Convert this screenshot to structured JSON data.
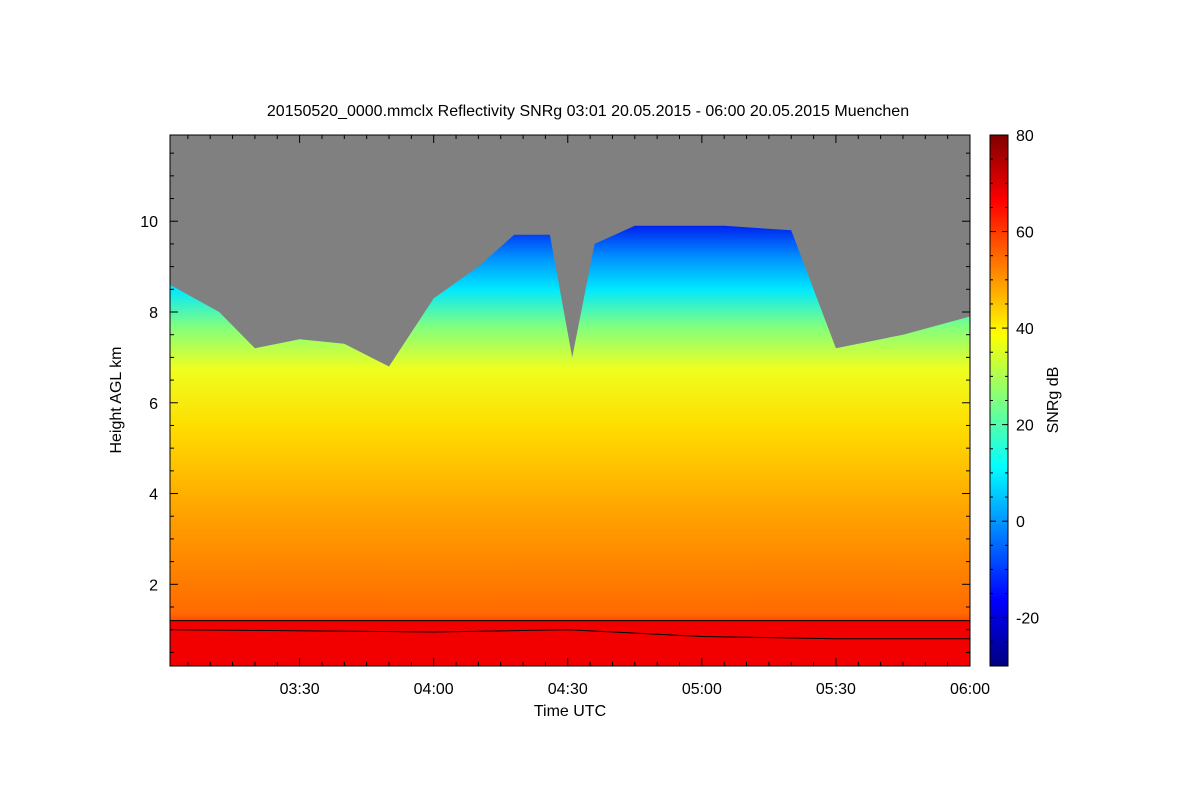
{
  "chart_data": {
    "type": "heatmap",
    "title": "20150520_0000.mmclx Reflectivity SNRg   03:01 20.05.2015 - 06:00 20.05.2015 Muenchen",
    "xlabel": "Time UTC",
    "ylabel": "Height AGL km",
    "colorbar_label": "SNRg dB",
    "x_ticks": [
      "03:30",
      "04:00",
      "04:30",
      "05:00",
      "05:30",
      "06:00"
    ],
    "y_ticks": [
      "2",
      "4",
      "6",
      "8",
      "10"
    ],
    "colorbar_ticks": [
      "-20",
      "0",
      "20",
      "40",
      "60",
      "80"
    ],
    "x_range": [
      "03:01",
      "06:00"
    ],
    "ylim": [
      0.2,
      11.9
    ],
    "clim": [
      -30,
      80
    ],
    "no_signal_color": "#808080",
    "colormap": [
      "#00007f",
      "#0000ff",
      "#007fff",
      "#00ffff",
      "#7fff7f",
      "#ffff00",
      "#ff7f00",
      "#ff0000",
      "#7f0000"
    ],
    "echo_top_km": [
      {
        "time": "03:01",
        "height": 8.6
      },
      {
        "time": "03:12",
        "height": 8.0
      },
      {
        "time": "03:20",
        "height": 7.2
      },
      {
        "time": "03:30",
        "height": 7.4
      },
      {
        "time": "03:40",
        "height": 7.3
      },
      {
        "time": "03:50",
        "height": 6.8
      },
      {
        "time": "04:00",
        "height": 8.3
      },
      {
        "time": "04:10",
        "height": 9.0
      },
      {
        "time": "04:18",
        "height": 9.7
      },
      {
        "time": "04:26",
        "height": 9.7
      },
      {
        "time": "04:31",
        "height": 7.0
      },
      {
        "time": "04:36",
        "height": 9.5
      },
      {
        "time": "04:45",
        "height": 9.9
      },
      {
        "time": "04:55",
        "height": 9.9
      },
      {
        "time": "05:05",
        "height": 9.9
      },
      {
        "time": "05:20",
        "height": 9.8
      },
      {
        "time": "05:30",
        "height": 7.2
      },
      {
        "time": "05:45",
        "height": 7.5
      },
      {
        "time": "06:00",
        "height": 7.9
      }
    ],
    "reference_lines_km": [
      {
        "time": "03:01",
        "upper": 1.2,
        "lower": 1.0
      },
      {
        "time": "04:00",
        "upper": 1.2,
        "lower": 0.95
      },
      {
        "time": "04:30",
        "upper": 1.2,
        "lower": 1.0
      },
      {
        "time": "05:00",
        "upper": 1.2,
        "lower": 0.85
      },
      {
        "time": "05:30",
        "upper": 1.2,
        "lower": 0.8
      },
      {
        "time": "06:00",
        "upper": 1.2,
        "lower": 0.8
      }
    ]
  }
}
